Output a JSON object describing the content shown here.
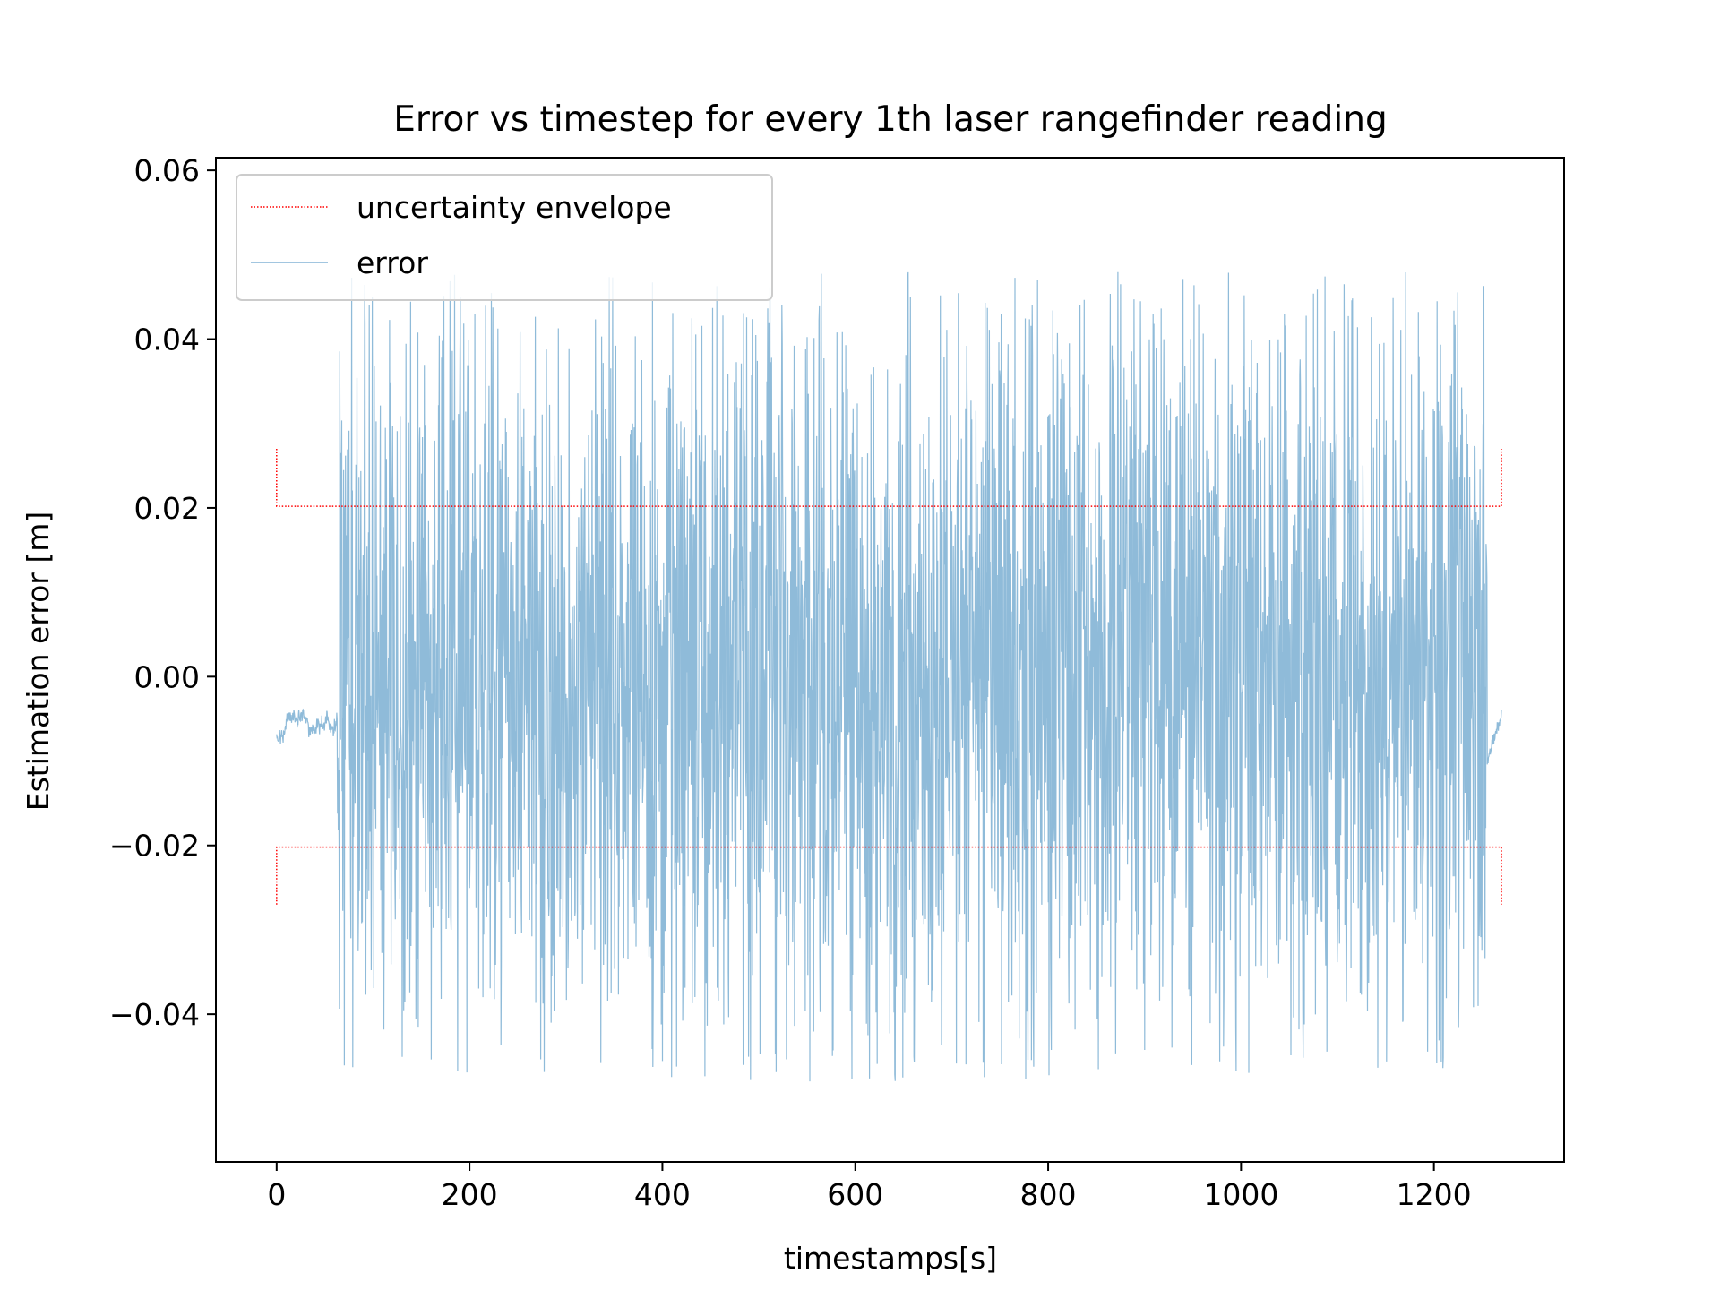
{
  "chart_data": {
    "type": "line",
    "title": "Error vs timestep for every 1th laser rangefinder reading",
    "xlabel": "timestamps[s]",
    "ylabel": "Estimation error [m]",
    "xlim": [
      -63,
      1335
    ],
    "ylim": [
      -0.0575,
      0.0615
    ],
    "xticks": [
      0,
      200,
      400,
      600,
      800,
      1000,
      1200
    ],
    "xtick_labels": [
      "0",
      "200",
      "400",
      "600",
      "800",
      "1000",
      "1200"
    ],
    "yticks": [
      -0.04,
      -0.02,
      0.0,
      0.02,
      0.04,
      0.06
    ],
    "ytick_labels": [
      "−0.04",
      "−0.02",
      "0.00",
      "0.02",
      "0.04",
      "0.06"
    ],
    "legend_position": "top-left",
    "series": [
      {
        "name": "uncertainty envelope",
        "color": "#ff0000",
        "style": "dotted",
        "upper": {
          "x": [
            0,
            0,
            1270,
            1270
          ],
          "y": [
            0.027,
            0.0202,
            0.0202,
            0.027
          ]
        },
        "lower": {
          "x": [
            0,
            0,
            1270,
            1270
          ],
          "y": [
            -0.027,
            -0.0202,
            -0.0202,
            -0.027
          ]
        }
      },
      {
        "name": "error",
        "color": "#1f77b4",
        "style": "solid",
        "x_range": [
          0,
          1270
        ],
        "y_amplitude_approx": [
          -0.052,
          0.052
        ],
        "y_start_approx": -0.0075,
        "y_end_approx": -0.0045
      }
    ]
  }
}
